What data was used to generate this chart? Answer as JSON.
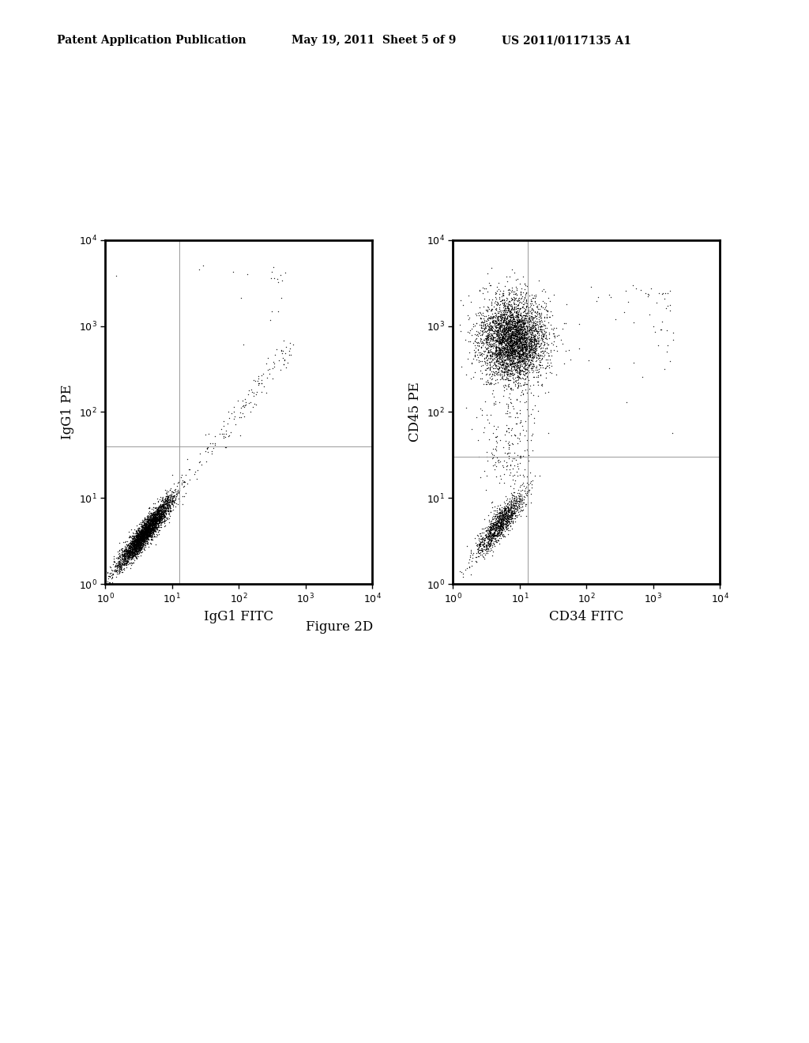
{
  "title_left": "Patent Application Publication",
  "title_center": "May 19, 2011  Sheet 5 of 9",
  "title_right": "US 2011/0117135 A1",
  "figure_label": "Figure 2D",
  "panel1": {
    "xlabel": "IgG1 FITC",
    "ylabel": "IgG1 PE",
    "xgate": 13.0,
    "ygate": 40.0
  },
  "panel2": {
    "xlabel": "CD34 FITC",
    "ylabel": "CD45 PE",
    "xgate": 13.0,
    "ygate": 30.0
  },
  "background_color": "#ffffff",
  "dot_color": "#000000",
  "gate_color": "#999999"
}
